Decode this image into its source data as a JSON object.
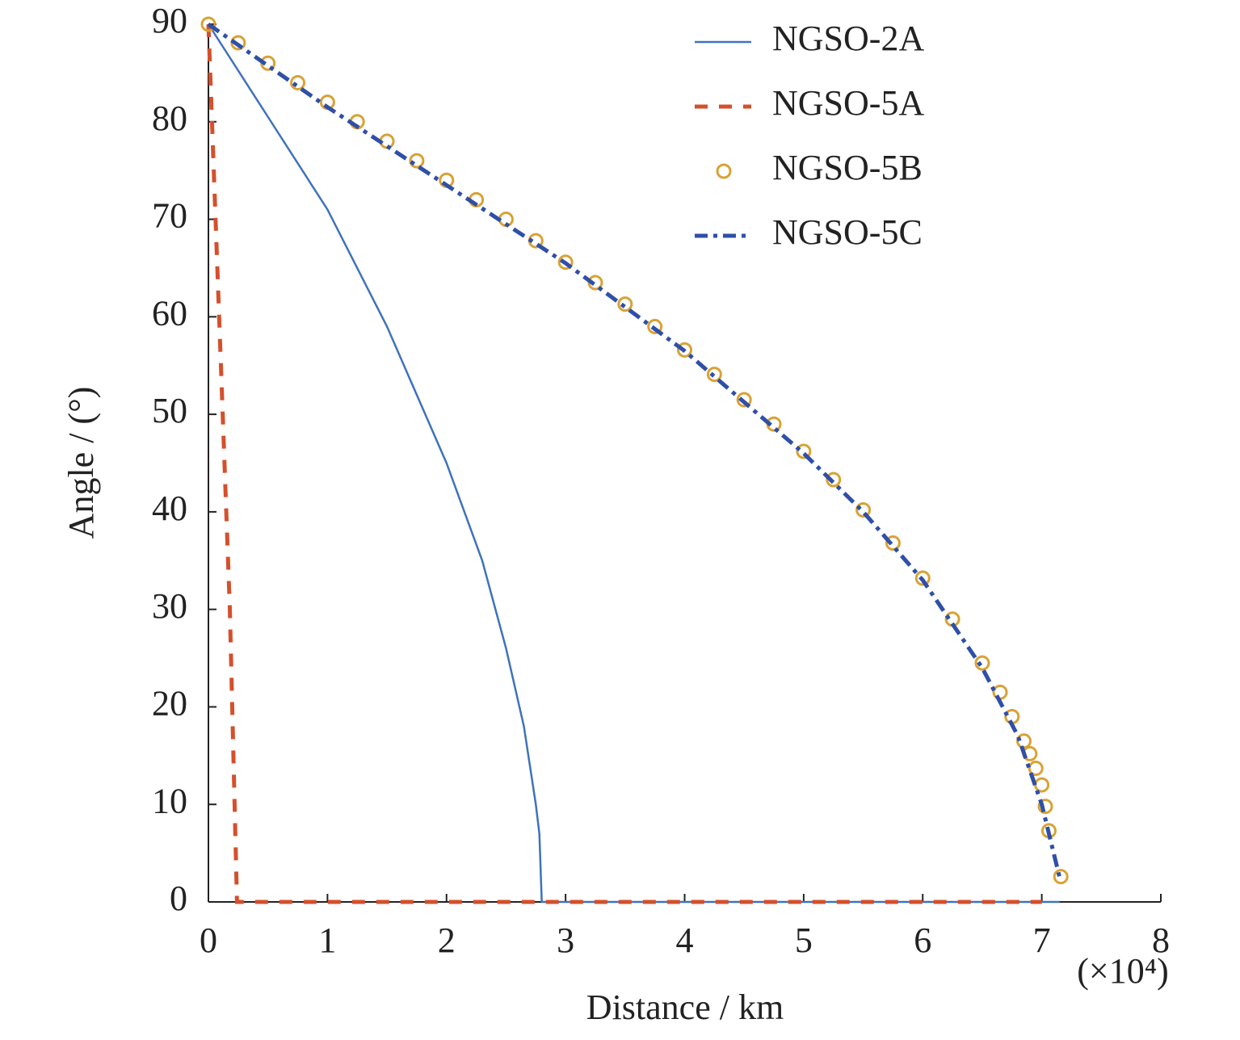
{
  "chart_data": {
    "type": "line",
    "xlabel": "Distance / km",
    "ylabel": "Angle / (°)",
    "x_multiplier": "(×10⁴)",
    "xlim": [
      0,
      8
    ],
    "xticks": [
      0,
      1,
      2,
      3,
      4,
      5,
      6,
      7,
      8
    ],
    "ylim": [
      0,
      90
    ],
    "yticks": [
      0,
      10,
      20,
      30,
      40,
      50,
      60,
      70,
      80,
      90
    ],
    "legend": "upper right",
    "series": [
      {
        "name": "NGSO-2A",
        "color": "#3f72bd",
        "style": "solid",
        "x": [
          0,
          0.5,
          1,
          1.5,
          2,
          2.3,
          2.5,
          2.65,
          2.75,
          2.78,
          2.8,
          4,
          5,
          6,
          7.15
        ],
        "values": [
          90,
          80.5,
          71,
          59,
          45,
          35,
          26,
          18,
          10,
          7,
          0,
          0,
          0,
          0,
          0
        ]
      },
      {
        "name": "NGSO-5A",
        "color": "#d4502c",
        "style": "dashed",
        "x": [
          0,
          0.09,
          0.18,
          0.24,
          7.0
        ],
        "values": [
          90,
          60,
          30,
          0,
          0
        ]
      },
      {
        "name": "NGSO-5B",
        "color": "#d9a235",
        "style": "markers",
        "x": [
          0,
          0.25,
          0.5,
          0.75,
          1,
          1.25,
          1.5,
          1.75,
          2,
          2.25,
          2.5,
          2.75,
          3,
          3.25,
          3.5,
          3.75,
          4,
          4.25,
          4.5,
          4.75,
          5,
          5.25,
          5.5,
          5.75,
          6,
          6.25,
          6.5,
          6.65,
          6.75,
          6.85,
          6.9,
          6.95,
          7.0,
          7.03,
          7.06,
          7.16
        ],
        "values": [
          90,
          88.1,
          86,
          84,
          82,
          80,
          78,
          76,
          74,
          72,
          70,
          67.8,
          65.6,
          63.5,
          61.3,
          59,
          56.6,
          54.1,
          51.5,
          49,
          46.2,
          43.3,
          40.2,
          36.8,
          33.2,
          29,
          24.5,
          21.5,
          19,
          16.5,
          15.2,
          13.7,
          12,
          9.8,
          7.3,
          2.6
        ]
      },
      {
        "name": "NGSO-5C",
        "color": "#2f4fa8",
        "style": "dashdot",
        "x": [
          0,
          1,
          2,
          3,
          4,
          5,
          5.5,
          6,
          6.5,
          6.8,
          7.0,
          7.1,
          7.15
        ],
        "values": [
          90,
          81.5,
          73.5,
          65.5,
          56.5,
          46,
          40,
          33,
          24,
          17,
          10,
          5,
          2.5
        ]
      }
    ]
  }
}
